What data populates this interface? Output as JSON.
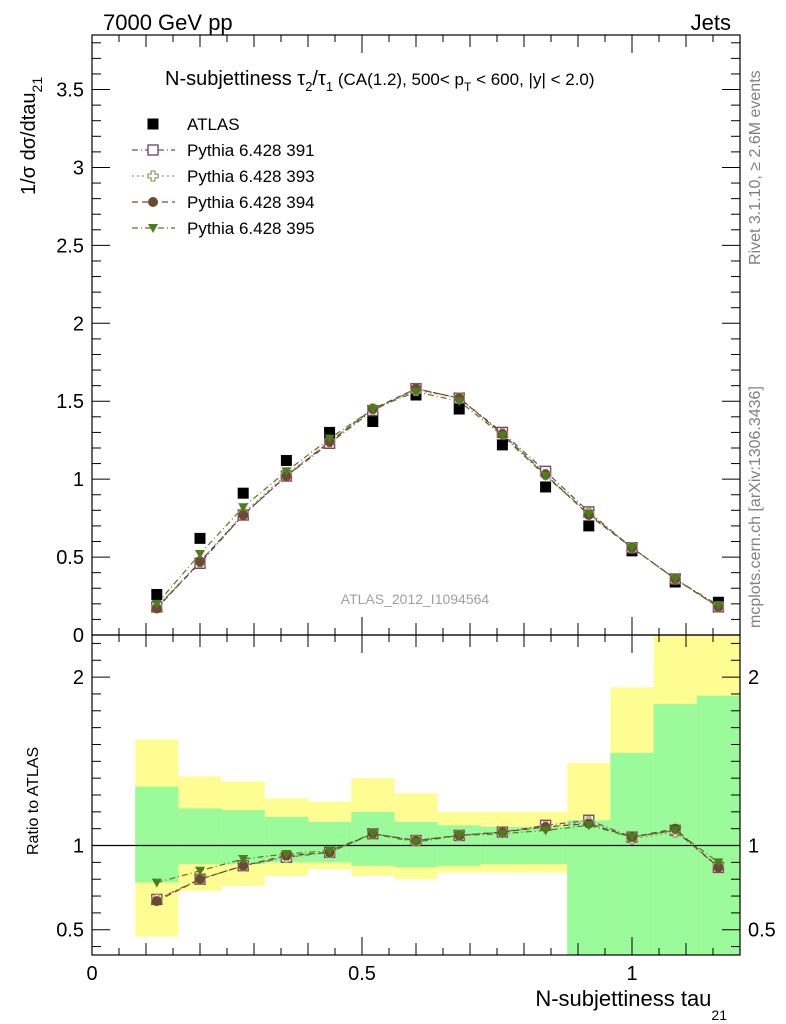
{
  "header": {
    "left": "7000 GeV pp",
    "right": "Jets"
  },
  "side_text": {
    "rivet": "Rivet 3.1.10, ≥ 2.6M events",
    "mcplots": "mcplots.cern.ch [arXiv:1306.3436]"
  },
  "watermark": "ATLAS_2012_I1094564",
  "chart_data": [
    {
      "type": "scatter",
      "panel": "main",
      "title": {
        "prefix": "N-subjettiness ",
        "tau": "τ",
        "sub2": "2",
        "slash": "/",
        "sub1": "1",
        "cut_a": " (CA(1.2), 500< p",
        "cut_sub": "T",
        "cut_b": " < 600, |y| < 2.0)"
      },
      "ylabel_main": "1/σ dσ/dtau",
      "ylabel_sub": "21",
      "xlabel_main": "N-subjettiness tau",
      "xlabel_sub": "21",
      "xlim": [
        0,
        1.2
      ],
      "ylim": [
        0,
        3.85
      ],
      "x_ticks": [
        "0",
        "0.5",
        "1"
      ],
      "y_ticks": [
        "0",
        "0.5",
        "1",
        "1.5",
        "2",
        "2.5",
        "3",
        "3.5"
      ],
      "x": [
        0.12,
        0.2,
        0.28,
        0.36,
        0.44,
        0.52,
        0.6,
        0.68,
        0.76,
        0.84,
        0.92,
        1.0,
        1.08,
        1.16
      ],
      "legend_position": "top-left",
      "series": [
        {
          "name": "ATLAS",
          "color": "#000000",
          "marker": "filled-square",
          "line": "none",
          "values": [
            0.26,
            0.62,
            0.91,
            1.12,
            1.3,
            1.37,
            1.54,
            1.45,
            1.22,
            0.95,
            0.7,
            0.54,
            0.34,
            0.21
          ]
        },
        {
          "name": "Pythia 6.428 391",
          "color": "#7b4a5a",
          "marker": "open-square",
          "line": "dash-dot",
          "values": [
            0.18,
            0.46,
            0.77,
            1.02,
            1.23,
            1.44,
            1.58,
            1.52,
            1.3,
            1.05,
            0.79,
            0.56,
            0.36,
            0.18
          ]
        },
        {
          "name": "Pythia 6.428 393",
          "color": "#9c9a6e",
          "marker": "open-cross",
          "line": "dotted",
          "values": [
            0.18,
            0.47,
            0.78,
            1.03,
            1.24,
            1.45,
            1.57,
            1.52,
            1.29,
            1.03,
            0.78,
            0.56,
            0.36,
            0.18
          ]
        },
        {
          "name": "Pythia 6.428 394",
          "color": "#6e4a34",
          "marker": "filled-circle",
          "line": "dashed",
          "values": [
            0.17,
            0.47,
            0.77,
            1.02,
            1.24,
            1.45,
            1.58,
            1.52,
            1.29,
            1.03,
            0.77,
            0.56,
            0.36,
            0.18
          ]
        },
        {
          "name": "Pythia 6.428 395",
          "color": "#4a7f1a",
          "marker": "filled-triangle-down",
          "line": "dash-dot",
          "values": [
            0.2,
            0.52,
            0.82,
            1.05,
            1.26,
            1.45,
            1.56,
            1.5,
            1.28,
            1.02,
            0.78,
            0.56,
            0.36,
            0.19
          ]
        }
      ]
    },
    {
      "type": "scatter",
      "panel": "ratio",
      "ylabel": "Ratio to ATLAS",
      "xlim": [
        0,
        1.2
      ],
      "ylim": [
        0.35,
        2.25
      ],
      "y_ticks": [
        "0.5",
        "1",
        "2"
      ],
      "reference_line": 1,
      "bin_edges": [
        0.08,
        0.16,
        0.24,
        0.32,
        0.4,
        0.48,
        0.56,
        0.64,
        0.72,
        0.8,
        0.88,
        0.96,
        1.04,
        1.12,
        1.2
      ],
      "band_colors": {
        "stat": "#9bfb9b",
        "total": "#fdfd92"
      },
      "band_stat": [
        [
          0.78,
          1.35
        ],
        [
          0.89,
          1.22
        ],
        [
          0.89,
          1.21
        ],
        [
          0.9,
          1.17
        ],
        [
          0.9,
          1.14
        ],
        [
          0.88,
          1.2
        ],
        [
          0.87,
          1.14
        ],
        [
          0.88,
          1.12
        ],
        [
          0.89,
          1.11
        ],
        [
          0.89,
          1.11
        ],
        [
          0.35,
          1.15
        ],
        [
          0.35,
          1.55
        ],
        [
          0.35,
          1.84
        ],
        [
          0.35,
          1.89
        ]
      ],
      "band_total": [
        [
          0.46,
          1.63
        ],
        [
          0.73,
          1.41
        ],
        [
          0.76,
          1.38
        ],
        [
          0.82,
          1.28
        ],
        [
          0.86,
          1.26
        ],
        [
          0.82,
          1.4
        ],
        [
          0.8,
          1.31
        ],
        [
          0.84,
          1.2
        ],
        [
          0.84,
          1.2
        ],
        [
          0.84,
          1.2
        ],
        [
          0.35,
          1.49
        ],
        [
          0.35,
          1.94
        ],
        [
          0.35,
          2.25
        ],
        [
          0.35,
          2.25
        ]
      ],
      "x": [
        0.12,
        0.2,
        0.28,
        0.36,
        0.44,
        0.52,
        0.6,
        0.68,
        0.76,
        0.84,
        0.92,
        1.0,
        1.08,
        1.16
      ],
      "series": [
        {
          "name": "Pythia 6.428 391",
          "values": [
            0.68,
            0.8,
            0.88,
            0.93,
            0.96,
            1.07,
            1.03,
            1.06,
            1.08,
            1.12,
            1.15,
            1.05,
            1.09,
            0.87
          ]
        },
        {
          "name": "Pythia 6.428 393",
          "values": [
            0.68,
            0.8,
            0.88,
            0.93,
            0.96,
            1.07,
            1.03,
            1.06,
            1.08,
            1.11,
            1.14,
            1.04,
            1.08,
            0.88
          ]
        },
        {
          "name": "Pythia 6.428 394",
          "values": [
            0.67,
            0.8,
            0.88,
            0.94,
            0.96,
            1.07,
            1.03,
            1.06,
            1.08,
            1.11,
            1.13,
            1.05,
            1.1,
            0.87
          ]
        },
        {
          "name": "Pythia 6.428 395",
          "values": [
            0.78,
            0.85,
            0.92,
            0.95,
            0.97,
            1.07,
            1.02,
            1.06,
            1.07,
            1.09,
            1.12,
            1.05,
            1.09,
            0.9
          ]
        }
      ]
    }
  ]
}
